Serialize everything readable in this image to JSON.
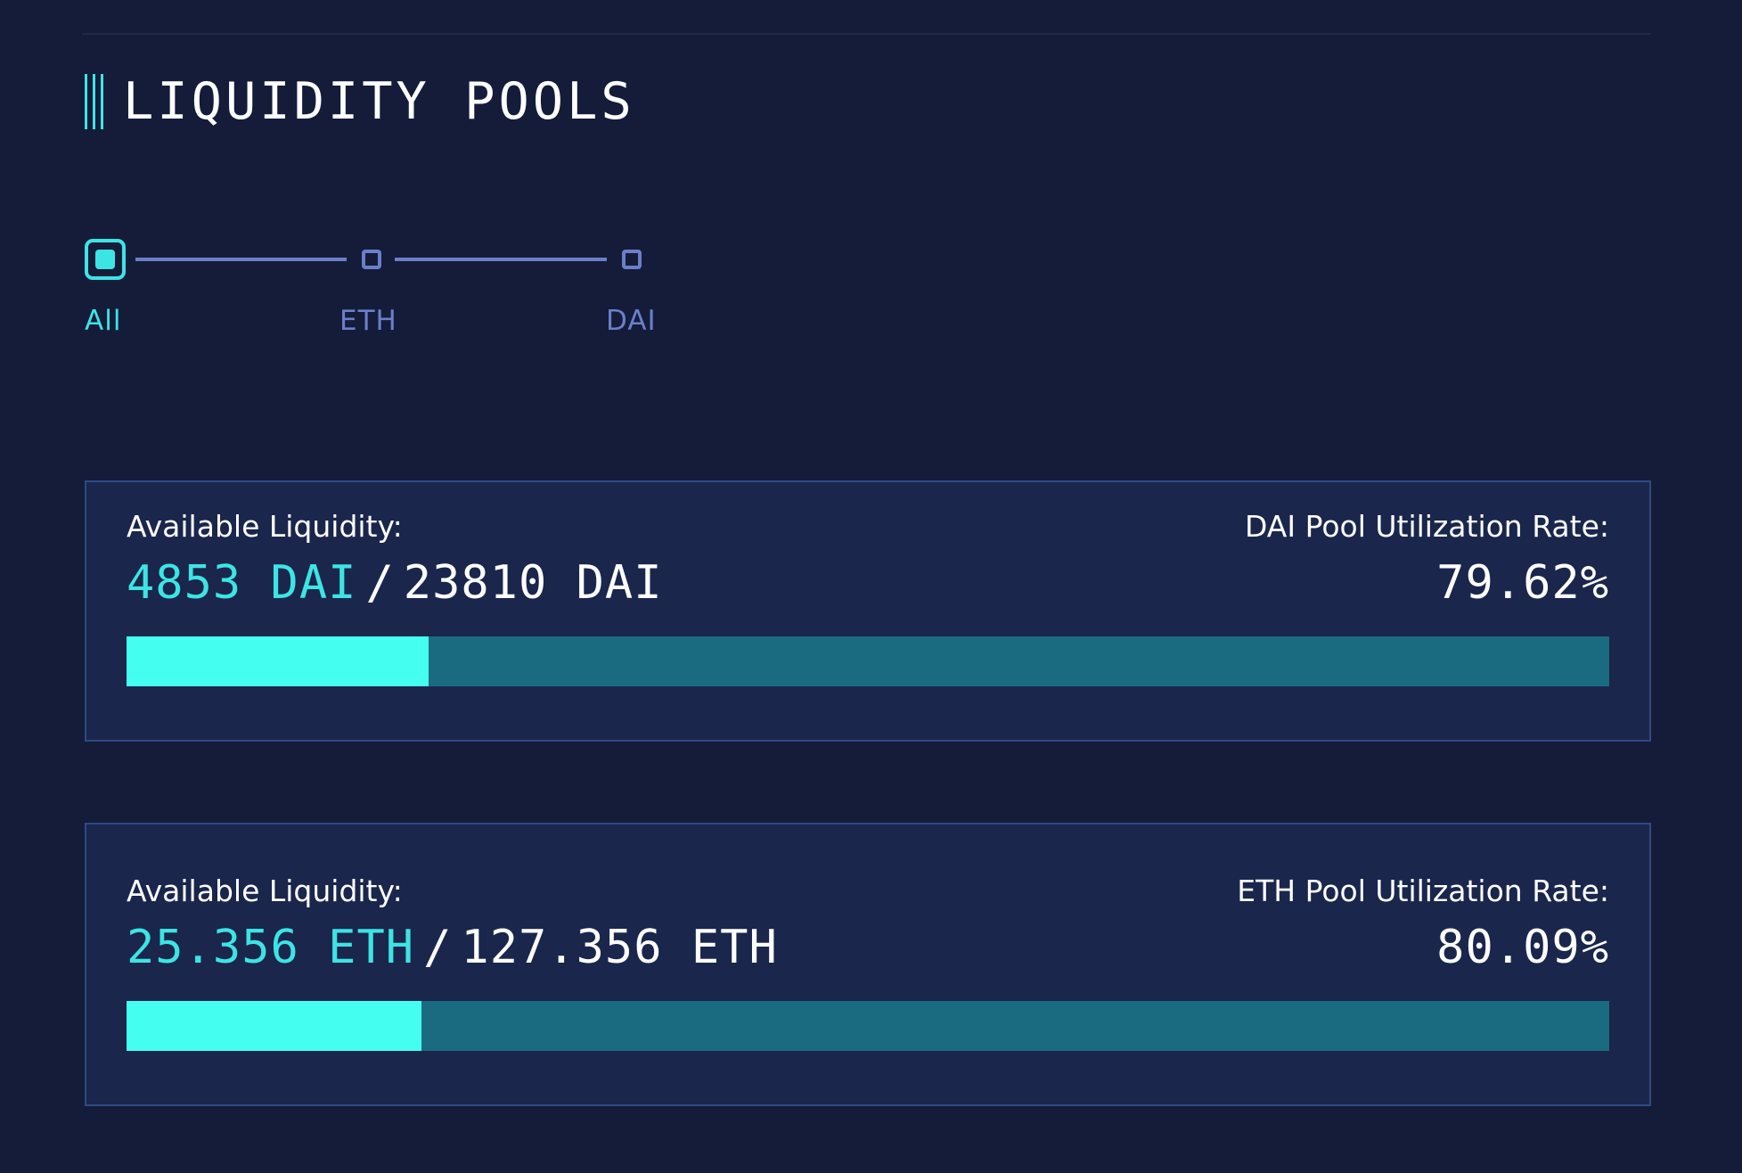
{
  "page": {
    "title": "LIQUIDITY POOLS"
  },
  "filter": {
    "options": [
      {
        "label": "All",
        "selected": true
      },
      {
        "label": "ETH",
        "selected": false
      },
      {
        "label": "DAI",
        "selected": false
      }
    ]
  },
  "pools": [
    {
      "available_label": "Available Liquidity:",
      "available": "4853 DAI",
      "separator": "/",
      "total": "23810 DAI",
      "rate_label": "DAI Pool Utilization Rate:",
      "rate": "79.62%",
      "available_fraction": 0.2038
    },
    {
      "available_label": "Available Liquidity:",
      "available": "25.356 ETH",
      "separator": "/",
      "total": "127.356 ETH",
      "rate_label": "ETH Pool Utilization Rate:",
      "rate": "80.09%",
      "available_fraction": 0.1991
    }
  ],
  "colors": {
    "background": "#141c3a",
    "accent": "#3de4e4",
    "bar_fill": "#44fff0",
    "bar_track": "#1b6b80",
    "card_border": "#2d4a86",
    "inactive": "#6b7fc9"
  }
}
